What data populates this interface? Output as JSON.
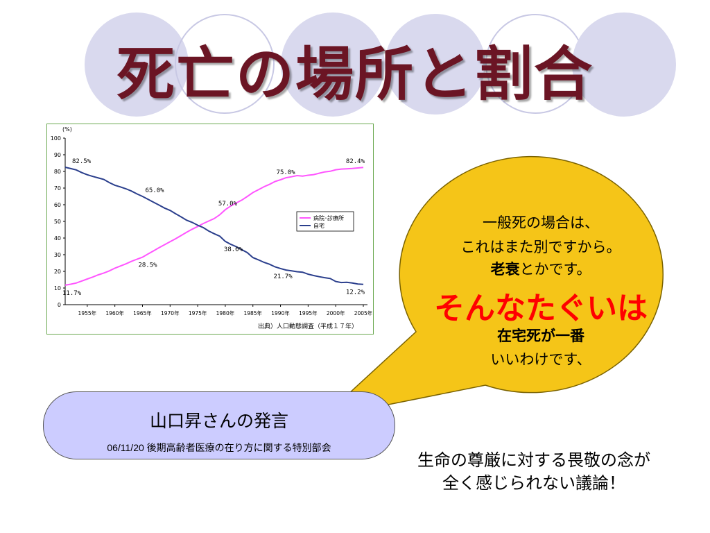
{
  "slide": {
    "title": "死亡の場所と割合",
    "colors": {
      "title": "#6b1524",
      "bubble": "#f5c518",
      "emphasis": "#ff0000",
      "speaker_box": "#ccccff"
    }
  },
  "speech": {
    "line1": "一般死の場合は、",
    "line2": "これはまた別ですから。",
    "line3_bold": "老衰",
    "line3_rest": "とかです。",
    "emphasis": "そんなたぐいは",
    "line4": "在宅死が一番",
    "line5": "いいわけです、"
  },
  "speaker": {
    "title": "山口昇さんの発言",
    "meeting": "06/11/20 後期高齢者医療の在り方に関する特別部会"
  },
  "comment": {
    "line1": "生命の尊厳に対する畏敬の念が",
    "line2": "全く感じられない議論！"
  },
  "chart_data": {
    "type": "line",
    "yunit": "(%)",
    "ylim": [
      0,
      100
    ],
    "yticks": [
      "0",
      "10",
      "20",
      "30",
      "40",
      "50",
      "60",
      "70",
      "80",
      "90",
      "100"
    ],
    "xlim": [
      1951,
      2005
    ],
    "xticks": [
      {
        "x": 1955,
        "label": "1955年"
      },
      {
        "x": 1960,
        "label": "1960年"
      },
      {
        "x": 1965,
        "label": "1965年"
      },
      {
        "x": 1970,
        "label": "1970年"
      },
      {
        "x": 1975,
        "label": "1975年"
      },
      {
        "x": 1980,
        "label": "1980年"
      },
      {
        "x": 1985,
        "label": "1985年"
      },
      {
        "x": 1990,
        "label": "1990年"
      },
      {
        "x": 1995,
        "label": "1995年"
      },
      {
        "x": 2000,
        "label": "2000年"
      },
      {
        "x": 2005,
        "label": "2005年"
      }
    ],
    "source": "出典）人口動態調査（平成１７年）",
    "legend_position": "right",
    "series": [
      {
        "name": "病院･診療所",
        "color": "#ff55ff",
        "x": [
          1951,
          1952,
          1953,
          1954,
          1955,
          1956,
          1957,
          1958,
          1959,
          1960,
          1961,
          1962,
          1963,
          1964,
          1965,
          1966,
          1967,
          1968,
          1969,
          1970,
          1971,
          1972,
          1973,
          1974,
          1975,
          1976,
          1977,
          1978,
          1979,
          1980,
          1981,
          1982,
          1983,
          1984,
          1985,
          1986,
          1987,
          1988,
          1989,
          1990,
          1991,
          1992,
          1993,
          1994,
          1995,
          1996,
          1997,
          1998,
          1999,
          2000,
          2001,
          2002,
          2003,
          2004,
          2005
        ],
        "y": [
          11.7,
          12.3,
          13.0,
          14.2,
          15.4,
          16.6,
          17.9,
          19.0,
          20.3,
          21.9,
          23.2,
          24.5,
          26.0,
          27.3,
          28.5,
          30.4,
          32.3,
          34.2,
          36.0,
          37.8,
          39.6,
          41.5,
          43.5,
          45.3,
          46.9,
          48.7,
          50.2,
          51.7,
          54.0,
          57.0,
          59.3,
          61.1,
          62.8,
          65.0,
          67.3,
          69.0,
          70.8,
          72.2,
          73.9,
          75.0,
          76.2,
          76.8,
          77.5,
          77.2,
          77.7,
          78.1,
          78.9,
          79.7,
          80.1,
          81.0,
          81.4,
          81.6,
          81.8,
          82.1,
          82.4
        ]
      },
      {
        "name": "自宅",
        "color": "#2a3e8c",
        "x": [
          1951,
          1952,
          1953,
          1954,
          1955,
          1956,
          1957,
          1958,
          1959,
          1960,
          1961,
          1962,
          1963,
          1964,
          1965,
          1966,
          1967,
          1968,
          1969,
          1970,
          1971,
          1972,
          1973,
          1974,
          1975,
          1976,
          1977,
          1978,
          1979,
          1980,
          1981,
          1982,
          1983,
          1984,
          1985,
          1986,
          1987,
          1988,
          1989,
          1990,
          1991,
          1992,
          1993,
          1994,
          1995,
          1996,
          1997,
          1998,
          1999,
          2000,
          2001,
          2002,
          2003,
          2004,
          2005
        ],
        "y": [
          82.5,
          81.7,
          80.9,
          79.3,
          78.0,
          77.0,
          76.1,
          75.2,
          73.3,
          71.7,
          70.7,
          69.6,
          68.2,
          66.5,
          65.0,
          63.3,
          61.5,
          59.8,
          58.0,
          56.6,
          54.6,
          52.7,
          50.7,
          49.4,
          47.7,
          46.3,
          44.2,
          42.6,
          41.1,
          38.0,
          36.2,
          34.8,
          33.0,
          31.2,
          28.3,
          26.9,
          25.4,
          24.3,
          22.7,
          21.7,
          20.8,
          20.3,
          19.8,
          19.5,
          18.3,
          17.5,
          16.8,
          16.2,
          15.7,
          13.9,
          13.3,
          13.4,
          13.0,
          12.4,
          12.2
        ]
      }
    ],
    "annotations": [
      {
        "series": 1,
        "x": 1951,
        "label": "82.5%"
      },
      {
        "series": 1,
        "x": 1965,
        "label": "65.0%"
      },
      {
        "series": 1,
        "x": 1980,
        "label": "38.0%"
      },
      {
        "series": 1,
        "x": 1990,
        "label": "21.7%"
      },
      {
        "series": 1,
        "x": 2005,
        "label": "12.2%"
      },
      {
        "series": 0,
        "x": 1951,
        "label": "11.7%"
      },
      {
        "series": 0,
        "x": 1965,
        "label": "28.5%"
      },
      {
        "series": 0,
        "x": 1980,
        "label": "57.0%"
      },
      {
        "series": 0,
        "x": 1990,
        "label": "75.0%"
      },
      {
        "series": 0,
        "x": 2005,
        "label": "82.4%"
      }
    ]
  }
}
